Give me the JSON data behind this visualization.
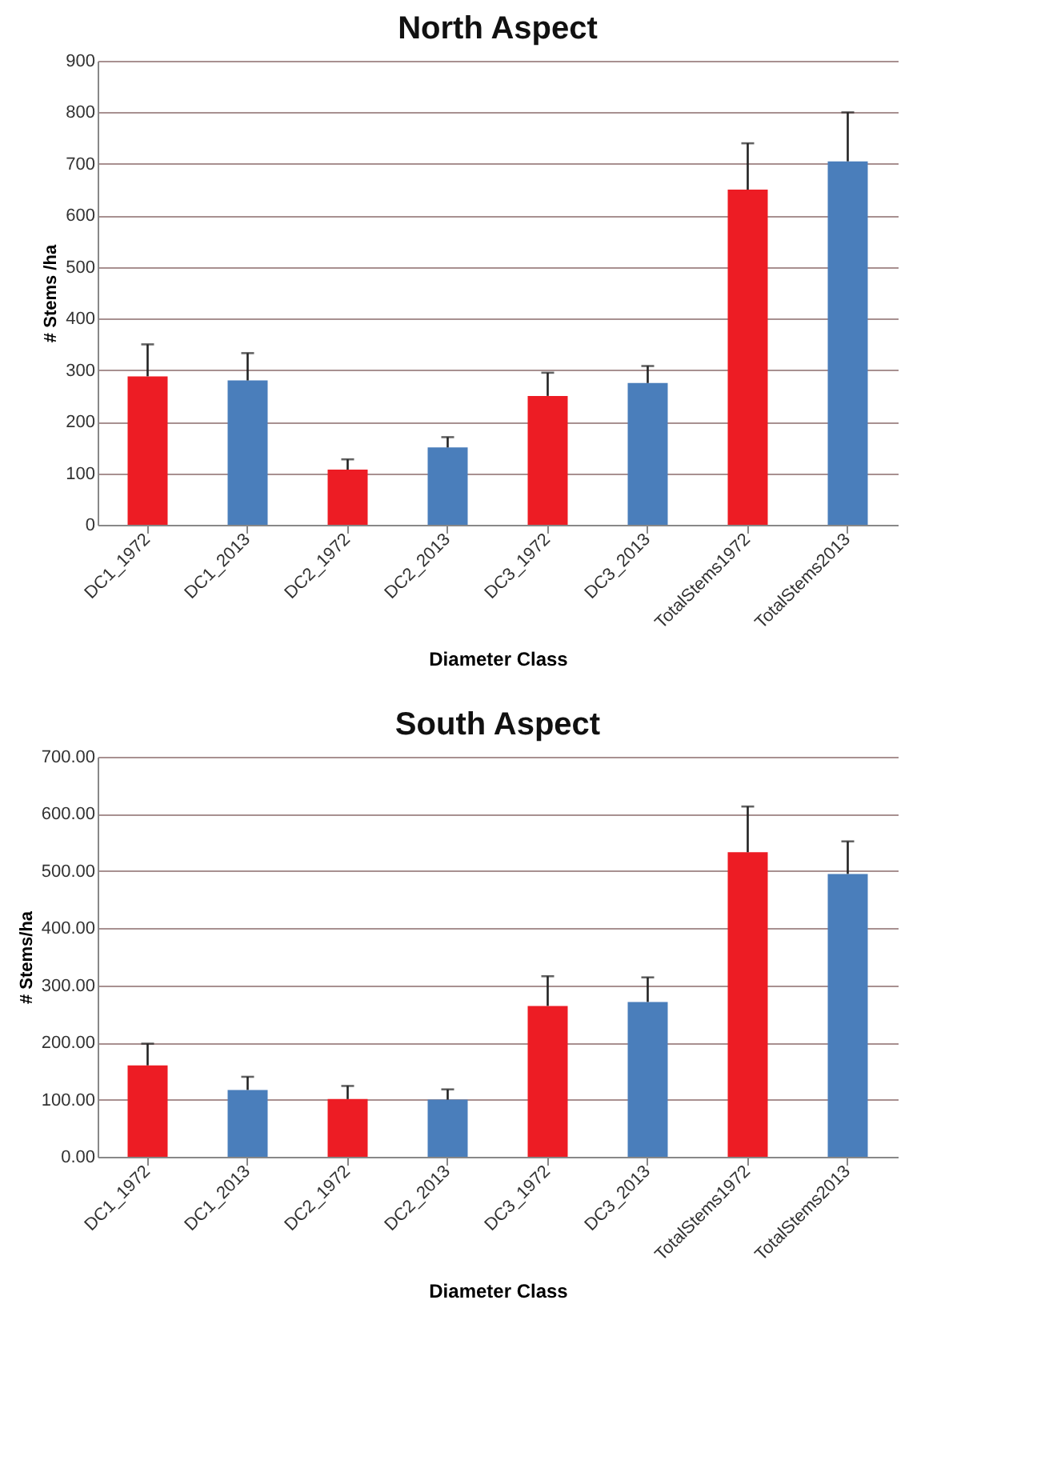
{
  "chart_data": [
    {
      "type": "bar",
      "title": "North Aspect",
      "xlabel": "Diameter Class",
      "ylabel": "# Stems /ha",
      "categories": [
        "DC1_1972",
        "DC1_2013",
        "DC2_1972",
        "DC2_2013",
        "DC3_1972",
        "DC3_2013",
        "TotalStems1972",
        "TotalStems2013"
      ],
      "values": [
        288,
        280,
        107,
        150,
        250,
        275,
        650,
        705
      ],
      "errors": [
        [
          288,
          350
        ],
        [
          280,
          333
        ],
        [
          107,
          127
        ],
        [
          150,
          170
        ],
        [
          250,
          295
        ],
        [
          275,
          308
        ],
        [
          650,
          740
        ],
        [
          705,
          800
        ]
      ],
      "colors": [
        "#ed1c24",
        "#4a7ebb",
        "#ed1c24",
        "#4a7ebb",
        "#ed1c24",
        "#4a7ebb",
        "#ed1c24",
        "#4a7ebb"
      ],
      "ylim": [
        0,
        900
      ],
      "yticks": [
        0,
        100,
        200,
        300,
        400,
        500,
        600,
        700,
        800,
        900
      ],
      "grid": "y"
    },
    {
      "type": "bar",
      "title": "South Aspect",
      "xlabel": "Diameter Class",
      "ylabel": "# Stems/ha",
      "categories": [
        "DC1_1972",
        "DC1_2013",
        "DC2_1972",
        "DC2_2013",
        "DC3_1972",
        "DC3_2013",
        "TotalStems1972",
        "TotalStems2013"
      ],
      "values": [
        160,
        117,
        101,
        100,
        264,
        271,
        533,
        495
      ],
      "errors": [
        [
          160,
          198
        ],
        [
          117,
          140
        ],
        [
          101,
          124
        ],
        [
          100,
          118
        ],
        [
          264,
          316
        ],
        [
          271,
          314
        ],
        [
          533,
          613
        ],
        [
          495,
          552
        ]
      ],
      "colors": [
        "#ed1c24",
        "#4a7ebb",
        "#ed1c24",
        "#4a7ebb",
        "#ed1c24",
        "#4a7ebb",
        "#ed1c24",
        "#4a7ebb"
      ],
      "ylim": [
        0,
        700
      ],
      "yticks": [
        {
          "value": 0,
          "label": "0.00"
        },
        {
          "value": 100,
          "label": "100.00"
        },
        {
          "value": 200,
          "label": "200.00"
        },
        {
          "value": 300,
          "label": "300.00"
        },
        {
          "value": 400,
          "label": "400.00"
        },
        {
          "value": 500,
          "label": "500.00"
        },
        {
          "value": 600,
          "label": "600.00"
        },
        {
          "value": 700,
          "label": "700.00"
        }
      ],
      "grid": "y"
    }
  ]
}
